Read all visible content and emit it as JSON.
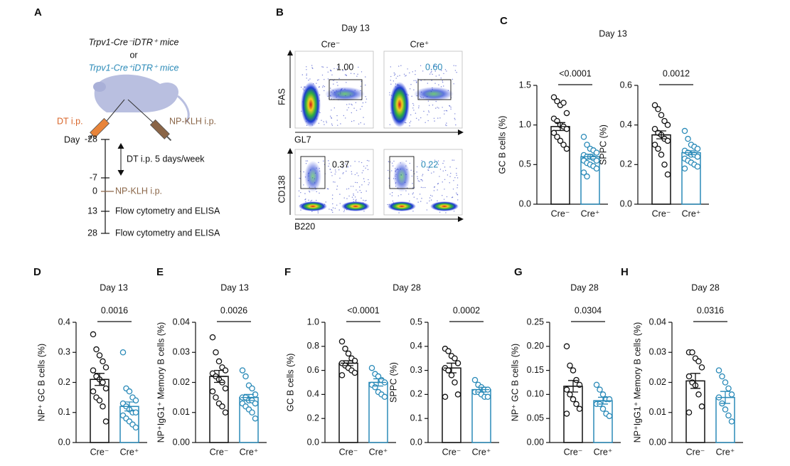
{
  "panel_labels": [
    "A",
    "B",
    "C",
    "D",
    "E",
    "F",
    "G",
    "H"
  ],
  "schematic": {
    "mouse_control": "Trpv1-Cre⁻iDTR⁺ mice",
    "or": "or",
    "mouse_test": "Trpv1-Cre⁺iDTR⁺ mice",
    "injection_left": "DT i.p.",
    "injection_right": "NP-KLH i.p.",
    "day_label": "Day",
    "span_note": "DT i.p. 5 days/week",
    "timeline": [
      {
        "day": "-28"
      },
      {
        "day": "-7"
      },
      {
        "day": "0",
        "event": "NP-KLH i.p."
      },
      {
        "day": "13",
        "event": "Flow cytometry and ELISA"
      },
      {
        "day": "28",
        "event": "Flow cytometry and ELISA"
      }
    ]
  },
  "flow": {
    "title": "Day 13",
    "columns": [
      "Cre⁻",
      "Cre⁺"
    ],
    "rows": [
      {
        "y_label": "FAS",
        "x_label": "GL7",
        "gates": [
          "1.00",
          "0.60"
        ]
      },
      {
        "y_label": "CD138",
        "x_label": "B220",
        "gates": [
          "0.37",
          "0.22"
        ]
      }
    ]
  },
  "chart_data": [
    {
      "type": "bar",
      "title": "Day 13",
      "ylabel": "GC B cells (%)",
      "ylim": [
        0,
        1.5
      ],
      "yticks": [
        {
          "value": 0,
          "label": "0.0"
        },
        0.5,
        {
          "value": 1,
          "label": "1.0"
        },
        1.5
      ],
      "p_value": "<0.0001",
      "groups": [
        {
          "label": "Cre⁻",
          "color": "#111111",
          "mean": 0.98,
          "sem": 0.05,
          "points": [
            1.35,
            1.3,
            1.25,
            1.28,
            1.15,
            1.08,
            1.05,
            1.0,
            0.98,
            0.95,
            0.9,
            0.85,
            0.8,
            0.75,
            0.7
          ]
        },
        {
          "label": "Cre⁺",
          "color": "#2a8ab8",
          "mean": 0.6,
          "sem": 0.03,
          "points": [
            0.85,
            0.75,
            0.7,
            0.68,
            0.65,
            0.62,
            0.6,
            0.6,
            0.58,
            0.55,
            0.55,
            0.52,
            0.5,
            0.48,
            0.45,
            0.4,
            0.35
          ]
        }
      ]
    },
    {
      "type": "bar",
      "ylabel": "SPPC (%)",
      "ylim": [
        0,
        0.6
      ],
      "yticks": [
        {
          "value": 0,
          "label": "0.0"
        },
        0.2,
        0.4,
        0.6
      ],
      "p_value": "0.0012",
      "groups": [
        {
          "label": "Cre⁻",
          "color": "#111111",
          "mean": 0.35,
          "sem": 0.02,
          "points": [
            0.5,
            0.48,
            0.45,
            0.42,
            0.4,
            0.38,
            0.36,
            0.35,
            0.33,
            0.32,
            0.3,
            0.28,
            0.25,
            0.2,
            0.15
          ]
        },
        {
          "label": "Cre⁺",
          "color": "#2a8ab8",
          "mean": 0.26,
          "sem": 0.01,
          "points": [
            0.37,
            0.33,
            0.3,
            0.29,
            0.28,
            0.27,
            0.26,
            0.25,
            0.25,
            0.24,
            0.23,
            0.22,
            0.21,
            0.2,
            0.19,
            0.18
          ]
        }
      ]
    },
    {
      "type": "bar",
      "title": "Day 13",
      "ylabel": "NP⁺ GC B cells (%)",
      "ylim": [
        0,
        0.4
      ],
      "yticks": [
        {
          "value": 0,
          "label": "0.0"
        },
        0.1,
        0.2,
        0.3,
        0.4
      ],
      "p_value": "0.0016",
      "groups": [
        {
          "label": "Cre⁻",
          "color": "#111111",
          "mean": 0.21,
          "sem": 0.02,
          "points": [
            0.36,
            0.31,
            0.29,
            0.27,
            0.25,
            0.24,
            0.22,
            0.21,
            0.2,
            0.18,
            0.17,
            0.15,
            0.14,
            0.12,
            0.07
          ]
        },
        {
          "label": "Cre⁺",
          "color": "#2a8ab8",
          "mean": 0.12,
          "sem": 0.015,
          "points": [
            0.3,
            0.18,
            0.17,
            0.15,
            0.14,
            0.13,
            0.12,
            0.11,
            0.1,
            0.1,
            0.09,
            0.08,
            0.07,
            0.06,
            0.05
          ]
        }
      ]
    },
    {
      "type": "bar",
      "title": "Day 13",
      "ylabel": "NP⁺IgG1⁺ Memory B cells (%)",
      "ylim": [
        0,
        0.04
      ],
      "yticks": [
        {
          "value": 0,
          "label": "0.00"
        },
        0.01,
        0.02,
        0.03,
        0.04
      ],
      "p_value": "0.0026",
      "groups": [
        {
          "label": "Cre⁻",
          "color": "#111111",
          "mean": 0.022,
          "sem": 0.002,
          "points": [
            0.035,
            0.03,
            0.027,
            0.025,
            0.024,
            0.023,
            0.022,
            0.021,
            0.02,
            0.018,
            0.017,
            0.015,
            0.013,
            0.012,
            0.01
          ]
        },
        {
          "label": "Cre⁺",
          "color": "#2a8ab8",
          "mean": 0.015,
          "sem": 0.001,
          "points": [
            0.024,
            0.022,
            0.019,
            0.018,
            0.016,
            0.015,
            0.015,
            0.014,
            0.014,
            0.013,
            0.013,
            0.012,
            0.011,
            0.01,
            0.008
          ]
        }
      ]
    },
    {
      "type": "bar",
      "title": "Day 28",
      "ylabel": "GC B cells (%)",
      "ylim": [
        0,
        1
      ],
      "yticks": [
        {
          "value": 0,
          "label": "0.0"
        },
        0.2,
        0.4,
        0.6,
        0.8,
        {
          "value": 1,
          "label": "1.0"
        }
      ],
      "p_value": "<0.0001",
      "groups": [
        {
          "label": "Cre⁻",
          "color": "#111111",
          "mean": 0.66,
          "sem": 0.02,
          "points": [
            0.84,
            0.78,
            0.74,
            0.7,
            0.68,
            0.66,
            0.64,
            0.62,
            0.6,
            0.58,
            0.56
          ]
        },
        {
          "label": "Cre⁺",
          "color": "#2a8ab8",
          "mean": 0.5,
          "sem": 0.03,
          "points": [
            0.62,
            0.57,
            0.55,
            0.52,
            0.5,
            0.48,
            0.46,
            0.42,
            0.4,
            0.38
          ]
        }
      ]
    },
    {
      "type": "bar",
      "ylabel": "SPPC (%)",
      "ylim": [
        0,
        0.5
      ],
      "yticks": [
        {
          "value": 0,
          "label": "0.0"
        },
        0.1,
        0.2,
        0.3,
        0.4,
        0.5
      ],
      "p_value": "0.0002",
      "groups": [
        {
          "label": "Cre⁻",
          "color": "#111111",
          "mean": 0.31,
          "sem": 0.02,
          "points": [
            0.39,
            0.38,
            0.36,
            0.35,
            0.33,
            0.31,
            0.3,
            0.28,
            0.25,
            0.2,
            0.19
          ]
        },
        {
          "label": "Cre⁺",
          "color": "#2a8ab8",
          "mean": 0.22,
          "sem": 0.01,
          "points": [
            0.26,
            0.24,
            0.23,
            0.22,
            0.22,
            0.21,
            0.21,
            0.2,
            0.19,
            0.19
          ]
        }
      ]
    },
    {
      "type": "bar",
      "title": "Day 28",
      "ylabel": "NP⁺ GC B cells (%)",
      "ylim": [
        0,
        0.25
      ],
      "yticks": [
        {
          "value": 0,
          "label": "0.00"
        },
        0.05,
        {
          "value": 0.1,
          "label": "0.10"
        },
        0.15,
        {
          "value": 0.2,
          "label": "0.20"
        },
        0.25
      ],
      "p_value": "0.0304",
      "groups": [
        {
          "label": "Cre⁻",
          "color": "#111111",
          "mean": 0.117,
          "sem": 0.012,
          "points": [
            0.2,
            0.16,
            0.15,
            0.13,
            0.12,
            0.11,
            0.1,
            0.09,
            0.08,
            0.07,
            0.06
          ]
        },
        {
          "label": "Cre⁺",
          "color": "#2a8ab8",
          "mean": 0.087,
          "sem": 0.007,
          "points": [
            0.12,
            0.11,
            0.1,
            0.09,
            0.09,
            0.08,
            0.08,
            0.07,
            0.06,
            0.055
          ]
        }
      ]
    },
    {
      "type": "bar",
      "title": "Day 28",
      "ylabel": "NP⁺IgG1⁺ Memory B cells (%)",
      "ylim": [
        0,
        0.04
      ],
      "yticks": [
        {
          "value": 0,
          "label": "0.00"
        },
        0.01,
        0.02,
        0.03,
        0.04
      ],
      "p_value": "0.0316",
      "groups": [
        {
          "label": "Cre⁻",
          "color": "#111111",
          "mean": 0.0205,
          "sem": 0.0025,
          "points": [
            0.03,
            0.03,
            0.028,
            0.027,
            0.025,
            0.022,
            0.02,
            0.019,
            0.016,
            0.012,
            0.01
          ]
        },
        {
          "label": "Cre⁺",
          "color": "#2a8ab8",
          "mean": 0.015,
          "sem": 0.002,
          "points": [
            0.024,
            0.022,
            0.02,
            0.018,
            0.016,
            0.015,
            0.013,
            0.011,
            0.009,
            0.007
          ]
        }
      ]
    }
  ]
}
